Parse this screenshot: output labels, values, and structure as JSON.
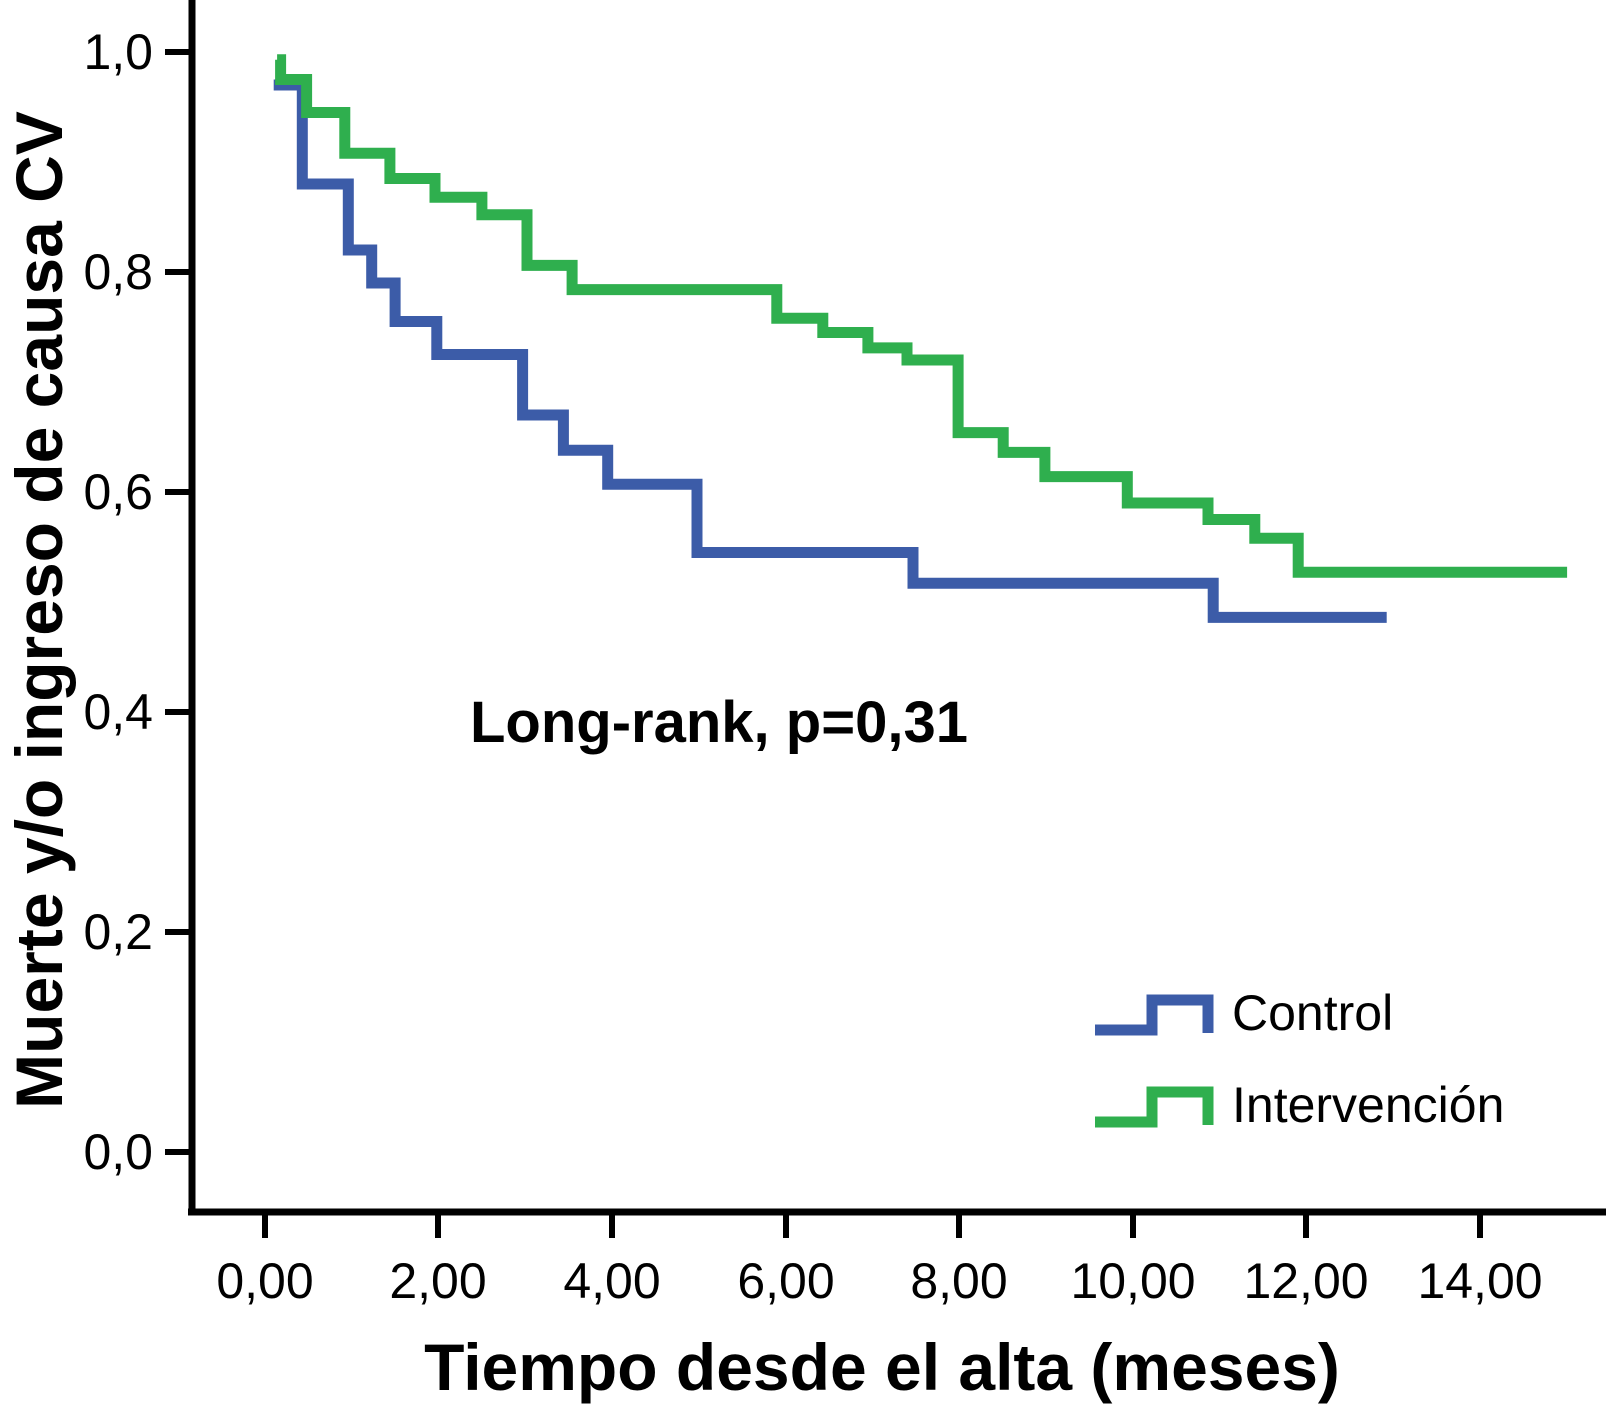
{
  "chart_data": {
    "type": "line",
    "subtype": "kaplan-meier-step",
    "title": "",
    "xlabel": "Tiempo desde el alta (meses)",
    "ylabel": "Muerte y/o ingreso de causa CV",
    "annotation": "Long-rank, p=0,31",
    "xlim": [
      0,
      15.2
    ],
    "ylim": [
      0,
      1.05
    ],
    "grid": false,
    "legend_position": "lower right",
    "x_tick_values": [
      0,
      2,
      4,
      6,
      8,
      10,
      12,
      14
    ],
    "x_tick_labels": [
      "0,00",
      "2,00",
      "4,00",
      "6,00",
      "8,00",
      "10,00",
      "12,00",
      "14,00"
    ],
    "y_tick_values": [
      0.0,
      0.2,
      0.4,
      0.6,
      0.8,
      1.0
    ],
    "y_tick_labels": [
      "0,0",
      "0,2",
      "0,4",
      "0,6",
      "0,8",
      "1,0"
    ],
    "series": [
      {
        "name": "Control",
        "color": "#3C5CA8",
        "x_end": 12.93,
        "points": [
          [
            0.1,
            0.97
          ],
          [
            0.43,
            0.88
          ],
          [
            0.96,
            0.82
          ],
          [
            1.23,
            0.79
          ],
          [
            1.5,
            0.755
          ],
          [
            1.98,
            0.725
          ],
          [
            2.97,
            0.67
          ],
          [
            3.44,
            0.638
          ],
          [
            3.95,
            0.607
          ],
          [
            4.98,
            0.545
          ],
          [
            7.47,
            0.517
          ],
          [
            10.93,
            0.486
          ]
        ]
      },
      {
        "name": "Intervención",
        "color": "#2FAF4E",
        "x_end": 15.01,
        "points": [
          [
            0.14,
            0.993
          ],
          [
            0.18,
            0.975
          ],
          [
            0.48,
            0.945
          ],
          [
            0.92,
            0.908
          ],
          [
            1.44,
            0.885
          ],
          [
            1.96,
            0.868
          ],
          [
            2.5,
            0.852
          ],
          [
            3.02,
            0.806
          ],
          [
            3.54,
            0.784
          ],
          [
            5.9,
            0.758
          ],
          [
            6.43,
            0.745
          ],
          [
            6.95,
            0.731
          ],
          [
            7.4,
            0.72
          ],
          [
            7.99,
            0.654
          ],
          [
            8.51,
            0.636
          ],
          [
            8.99,
            0.614
          ],
          [
            9.94,
            0.59
          ],
          [
            10.87,
            0.575
          ],
          [
            11.41,
            0.558
          ],
          [
            11.91,
            0.527
          ]
        ]
      }
    ]
  }
}
